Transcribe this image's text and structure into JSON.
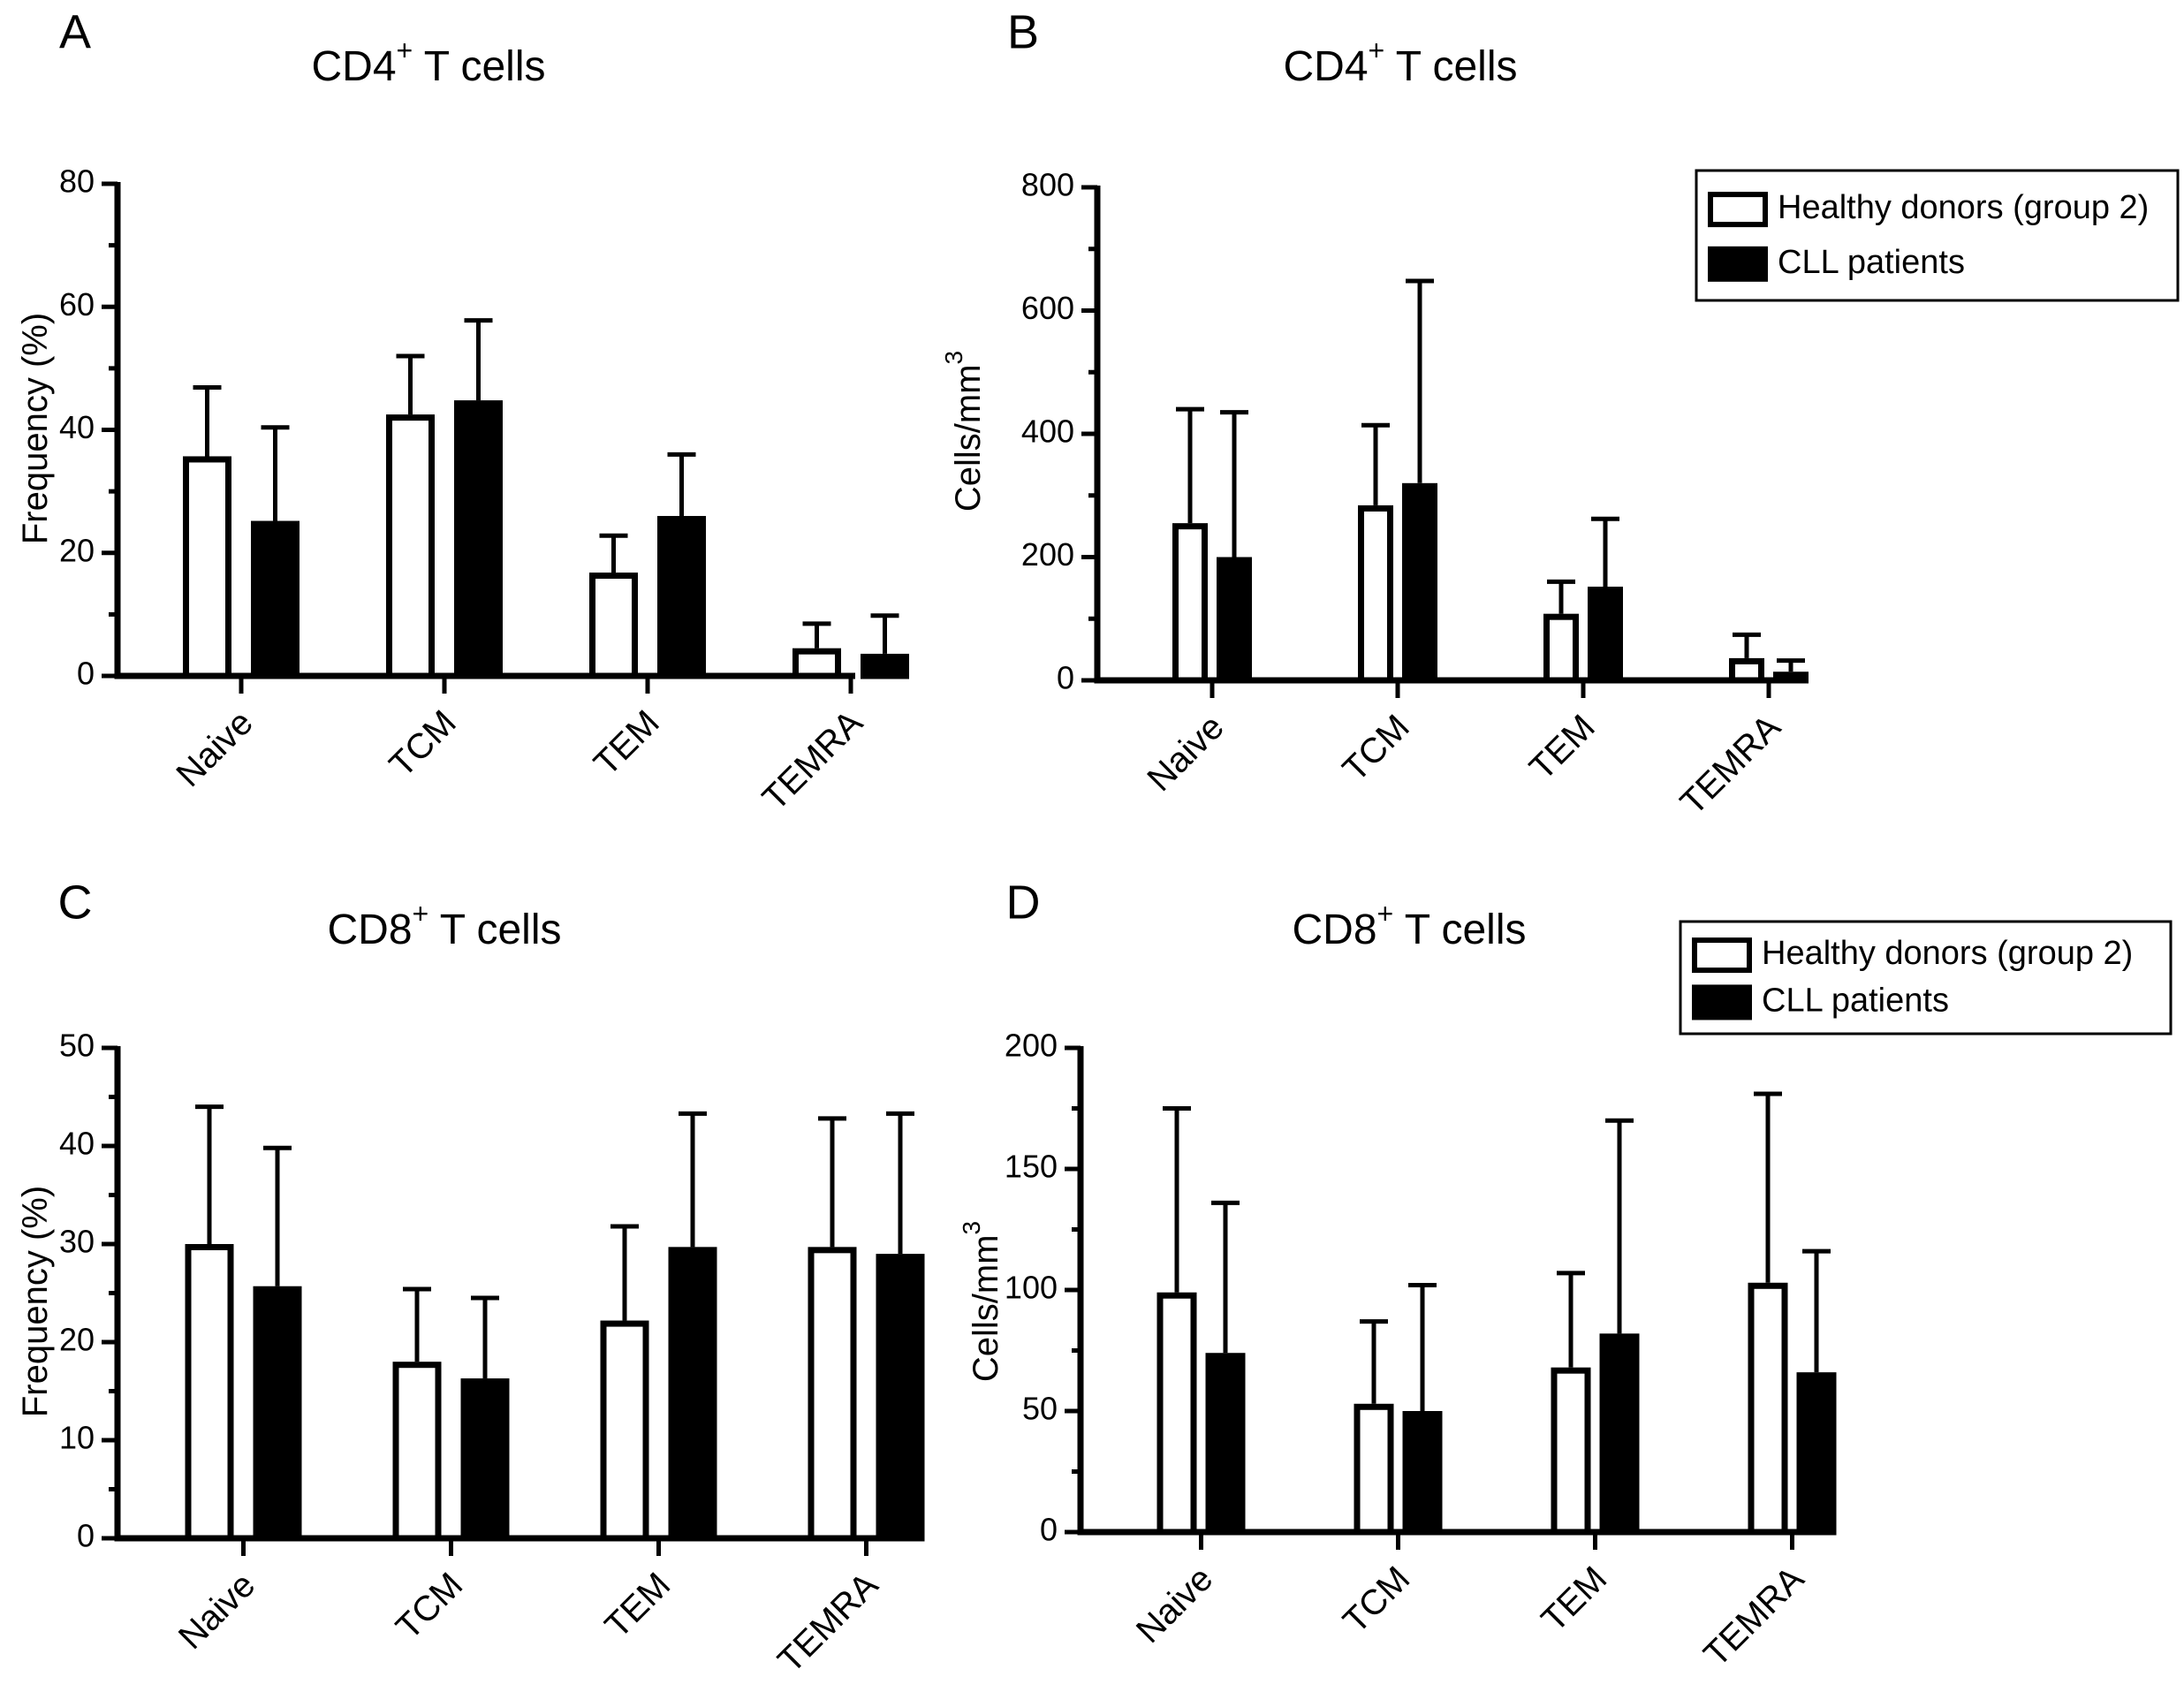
{
  "colors": {
    "healthy_fill": "#ffffff",
    "cll_fill": "#000000",
    "stroke": "#000000"
  },
  "chart_data": [
    {
      "panel": "A",
      "type": "bar",
      "title": {
        "main": "CD4",
        "sup": "+",
        "rest": " T cells"
      },
      "ylabel": {
        "main": "Frequency (%)",
        "sup": ""
      },
      "categories": [
        "Naive",
        "TCM",
        "TEM",
        "TEMRA"
      ],
      "ylim": [
        0,
        80
      ],
      "yticks": [
        0,
        20,
        40,
        60,
        80
      ],
      "series": [
        {
          "name": "Healthy donors (group 2)",
          "fill": "open",
          "values": [
            35.7,
            42.5,
            16.8,
            4.5
          ],
          "errors": [
            11.2,
            9.5,
            6.0,
            4.0
          ]
        },
        {
          "name": "CLL patients",
          "fill": "solid",
          "values": [
            25.2,
            44.8,
            26.0,
            3.6
          ],
          "errors": [
            15.2,
            13.0,
            10.0,
            6.2
          ]
        }
      ],
      "legend": {
        "show": false
      }
    },
    {
      "panel": "B",
      "type": "bar",
      "title": {
        "main": "CD4",
        "sup": "+",
        "rest": " T cells"
      },
      "ylabel": {
        "main": "Cells/mm",
        "sup": "3"
      },
      "categories": [
        "Naive",
        "TCM",
        "TEM",
        "TEMRA"
      ],
      "ylim": [
        0,
        800
      ],
      "yticks": [
        0,
        200,
        400,
        600,
        800
      ],
      "series": [
        {
          "name": "Healthy donors (group 2)",
          "fill": "open",
          "values": [
            255,
            284,
            108,
            36
          ],
          "errors": [
            185,
            130,
            52,
            38
          ]
        },
        {
          "name": "CLL patients",
          "fill": "solid",
          "values": [
            200,
            320,
            152,
            14
          ],
          "errors": [
            235,
            328,
            110,
            18
          ]
        }
      ],
      "legend": {
        "show": true,
        "position": "top-right",
        "items": [
          "Healthy donors (group 2)",
          "CLL patients"
        ]
      }
    },
    {
      "panel": "C",
      "type": "bar",
      "title": {
        "main": "CD8",
        "sup": "+",
        "rest": " T cells"
      },
      "ylabel": {
        "main": "Frequency (%)",
        "sup": ""
      },
      "categories": [
        "Naive",
        "TCM",
        "TEM",
        "TEMRA"
      ],
      "ylim": [
        0,
        50
      ],
      "yticks": [
        0,
        10,
        20,
        30,
        40,
        50
      ],
      "series": [
        {
          "name": "Healthy donors (group 2)",
          "fill": "open",
          "values": [
            30.0,
            18.0,
            22.2,
            29.7
          ],
          "errors": [
            14.0,
            7.4,
            9.6,
            13.1
          ]
        },
        {
          "name": "CLL patients",
          "fill": "solid",
          "values": [
            25.7,
            16.3,
            29.7,
            29.0
          ],
          "errors": [
            14.1,
            8.2,
            13.6,
            14.3
          ]
        }
      ],
      "legend": {
        "show": false
      }
    },
    {
      "panel": "D",
      "type": "bar",
      "title": {
        "main": "CD8",
        "sup": "+",
        "rest": " T cells"
      },
      "ylabel": {
        "main": "Cells/mm",
        "sup": "3"
      },
      "categories": [
        "Naive",
        "TCM",
        "TEM",
        "TEMRA"
      ],
      "ylim": [
        0,
        200
      ],
      "yticks": [
        0,
        50,
        100,
        150,
        200
      ],
      "series": [
        {
          "name": "Healthy donors (group 2)",
          "fill": "open",
          "values": [
            99,
            53,
            68,
            103
          ],
          "errors": [
            76,
            34,
            39,
            78
          ]
        },
        {
          "name": "CLL patients",
          "fill": "solid",
          "values": [
            74,
            50,
            82,
            66
          ],
          "errors": [
            62,
            52,
            88,
            50
          ]
        }
      ],
      "legend": {
        "show": true,
        "position": "top-right",
        "items": [
          "Healthy donors (group 2)",
          "CLL patients"
        ]
      }
    }
  ]
}
